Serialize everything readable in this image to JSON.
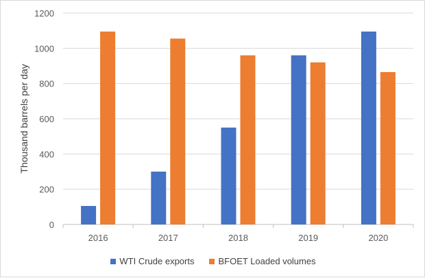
{
  "chart_data": {
    "type": "bar",
    "title": "",
    "xlabel": "",
    "ylabel": "Thousand barrels per day",
    "ylim": [
      0,
      1200
    ],
    "yticks": [
      0,
      200,
      400,
      600,
      800,
      1000,
      1200
    ],
    "grid": true,
    "legend_position": "bottom",
    "categories": [
      "2016",
      "2017",
      "2018",
      "2019",
      "2020"
    ],
    "series": [
      {
        "name": "WTI Crude exports",
        "color": "#4472C4",
        "values": [
          105,
          300,
          550,
          960,
          1095
        ]
      },
      {
        "name": "BFOET Loaded volumes",
        "color": "#ED7D31",
        "values": [
          1095,
          1055,
          960,
          920,
          865
        ]
      }
    ]
  }
}
